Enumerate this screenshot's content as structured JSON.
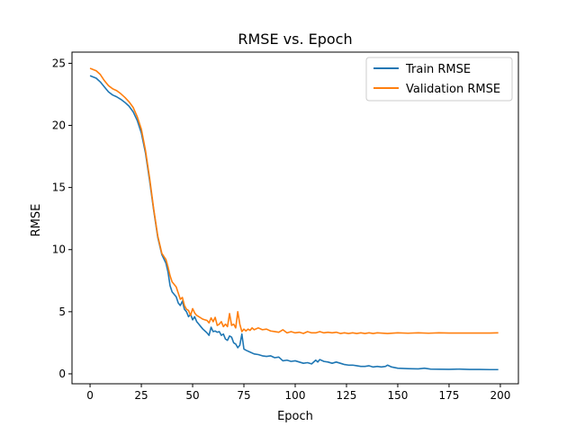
{
  "chart_data": {
    "type": "line",
    "title": "RMSE vs. Epoch",
    "xlabel": "Epoch",
    "ylabel": "RMSE",
    "xlim": [
      -8.8,
      208.8
    ],
    "ylim": [
      -0.8,
      25.9
    ],
    "xticks": [
      0,
      25,
      50,
      75,
      100,
      125,
      150,
      175,
      200
    ],
    "yticks": [
      0,
      5,
      10,
      15,
      20,
      25
    ],
    "grid": false,
    "legend_position": "top-right",
    "series": [
      {
        "name": "Train RMSE",
        "color": "#1f77b4",
        "points": [
          [
            0,
            24.0
          ],
          [
            3,
            23.8
          ],
          [
            5,
            23.5
          ],
          [
            7,
            23.1
          ],
          [
            9,
            22.7
          ],
          [
            11,
            22.45
          ],
          [
            13,
            22.3
          ],
          [
            15,
            22.1
          ],
          [
            17,
            21.85
          ],
          [
            19,
            21.55
          ],
          [
            21,
            21.1
          ],
          [
            23,
            20.4
          ],
          [
            25,
            19.4
          ],
          [
            27,
            17.8
          ],
          [
            29,
            15.6
          ],
          [
            31,
            13.2
          ],
          [
            33,
            11.0
          ],
          [
            35,
            9.6
          ],
          [
            37,
            8.9
          ],
          [
            38,
            8.2
          ],
          [
            39,
            7.1
          ],
          [
            40,
            6.6
          ],
          [
            42,
            6.2
          ],
          [
            43,
            5.7
          ],
          [
            44,
            5.5
          ],
          [
            45,
            5.85
          ],
          [
            46,
            5.2
          ],
          [
            47,
            5.0
          ],
          [
            48,
            4.6
          ],
          [
            49,
            4.8
          ],
          [
            50,
            4.35
          ],
          [
            51,
            4.6
          ],
          [
            52,
            4.2
          ],
          [
            53,
            4.0
          ],
          [
            54,
            3.8
          ],
          [
            55,
            3.6
          ],
          [
            56,
            3.45
          ],
          [
            57,
            3.3
          ],
          [
            58,
            3.1
          ],
          [
            59,
            3.75
          ],
          [
            60,
            3.4
          ],
          [
            61,
            3.45
          ],
          [
            62,
            3.35
          ],
          [
            63,
            3.4
          ],
          [
            64,
            3.1
          ],
          [
            65,
            3.2
          ],
          [
            66,
            2.8
          ],
          [
            67,
            2.7
          ],
          [
            68,
            3.05
          ],
          [
            69,
            2.95
          ],
          [
            70,
            2.5
          ],
          [
            71,
            2.4
          ],
          [
            72,
            2.1
          ],
          [
            73,
            2.3
          ],
          [
            74,
            3.2
          ],
          [
            75,
            2.0
          ],
          [
            76,
            1.9
          ],
          [
            78,
            1.75
          ],
          [
            80,
            1.6
          ],
          [
            82,
            1.55
          ],
          [
            84,
            1.45
          ],
          [
            86,
            1.4
          ],
          [
            88,
            1.45
          ],
          [
            90,
            1.3
          ],
          [
            92,
            1.35
          ],
          [
            94,
            1.05
          ],
          [
            96,
            1.1
          ],
          [
            98,
            1.0
          ],
          [
            100,
            1.05
          ],
          [
            102,
            0.95
          ],
          [
            104,
            0.85
          ],
          [
            106,
            0.9
          ],
          [
            108,
            0.8
          ],
          [
            110,
            1.1
          ],
          [
            111,
            0.95
          ],
          [
            112,
            1.15
          ],
          [
            114,
            1.0
          ],
          [
            116,
            0.95
          ],
          [
            118,
            0.85
          ],
          [
            120,
            0.95
          ],
          [
            122,
            0.85
          ],
          [
            124,
            0.75
          ],
          [
            126,
            0.7
          ],
          [
            128,
            0.7
          ],
          [
            130,
            0.65
          ],
          [
            132,
            0.6
          ],
          [
            134,
            0.6
          ],
          [
            136,
            0.65
          ],
          [
            138,
            0.55
          ],
          [
            140,
            0.6
          ],
          [
            142,
            0.55
          ],
          [
            144,
            0.6
          ],
          [
            145,
            0.7
          ],
          [
            147,
            0.55
          ],
          [
            150,
            0.45
          ],
          [
            155,
            0.42
          ],
          [
            160,
            0.4
          ],
          [
            163,
            0.45
          ],
          [
            166,
            0.38
          ],
          [
            170,
            0.37
          ],
          [
            175,
            0.36
          ],
          [
            180,
            0.38
          ],
          [
            185,
            0.35
          ],
          [
            190,
            0.35
          ],
          [
            195,
            0.34
          ],
          [
            199,
            0.34
          ]
        ]
      },
      {
        "name": "Validation RMSE",
        "color": "#ff7f0e",
        "points": [
          [
            0,
            24.6
          ],
          [
            3,
            24.4
          ],
          [
            5,
            24.1
          ],
          [
            7,
            23.6
          ],
          [
            9,
            23.2
          ],
          [
            11,
            22.95
          ],
          [
            13,
            22.8
          ],
          [
            15,
            22.55
          ],
          [
            17,
            22.25
          ],
          [
            19,
            21.9
          ],
          [
            21,
            21.45
          ],
          [
            23,
            20.7
          ],
          [
            25,
            19.7
          ],
          [
            27,
            18.0
          ],
          [
            29,
            15.8
          ],
          [
            31,
            13.3
          ],
          [
            33,
            11.1
          ],
          [
            35,
            9.7
          ],
          [
            37,
            9.2
          ],
          [
            38,
            8.6
          ],
          [
            39,
            7.9
          ],
          [
            40,
            7.4
          ],
          [
            42,
            7.0
          ],
          [
            43,
            6.5
          ],
          [
            44,
            6.0
          ],
          [
            45,
            6.15
          ],
          [
            46,
            5.5
          ],
          [
            47,
            5.2
          ],
          [
            48,
            5.1
          ],
          [
            49,
            4.7
          ],
          [
            50,
            5.25
          ],
          [
            51,
            4.9
          ],
          [
            52,
            4.7
          ],
          [
            53,
            4.6
          ],
          [
            54,
            4.5
          ],
          [
            55,
            4.4
          ],
          [
            56,
            4.35
          ],
          [
            57,
            4.3
          ],
          [
            58,
            4.1
          ],
          [
            59,
            4.5
          ],
          [
            60,
            4.2
          ],
          [
            61,
            4.55
          ],
          [
            62,
            3.9
          ],
          [
            63,
            4.0
          ],
          [
            64,
            4.2
          ],
          [
            65,
            3.8
          ],
          [
            66,
            4.0
          ],
          [
            67,
            3.8
          ],
          [
            68,
            4.85
          ],
          [
            69,
            3.9
          ],
          [
            70,
            4.0
          ],
          [
            71,
            3.7
          ],
          [
            72,
            5.0
          ],
          [
            73,
            4.0
          ],
          [
            74,
            3.4
          ],
          [
            75,
            3.6
          ],
          [
            76,
            3.45
          ],
          [
            77,
            3.6
          ],
          [
            78,
            3.5
          ],
          [
            79,
            3.7
          ],
          [
            80,
            3.55
          ],
          [
            82,
            3.7
          ],
          [
            84,
            3.55
          ],
          [
            86,
            3.6
          ],
          [
            88,
            3.45
          ],
          [
            90,
            3.4
          ],
          [
            92,
            3.35
          ],
          [
            94,
            3.55
          ],
          [
            96,
            3.3
          ],
          [
            98,
            3.4
          ],
          [
            100,
            3.3
          ],
          [
            102,
            3.35
          ],
          [
            104,
            3.25
          ],
          [
            106,
            3.4
          ],
          [
            108,
            3.3
          ],
          [
            110,
            3.3
          ],
          [
            112,
            3.4
          ],
          [
            114,
            3.3
          ],
          [
            116,
            3.35
          ],
          [
            118,
            3.3
          ],
          [
            120,
            3.35
          ],
          [
            122,
            3.25
          ],
          [
            124,
            3.3
          ],
          [
            126,
            3.25
          ],
          [
            128,
            3.3
          ],
          [
            130,
            3.25
          ],
          [
            132,
            3.3
          ],
          [
            134,
            3.25
          ],
          [
            136,
            3.3
          ],
          [
            138,
            3.25
          ],
          [
            140,
            3.3
          ],
          [
            145,
            3.25
          ],
          [
            150,
            3.3
          ],
          [
            155,
            3.27
          ],
          [
            160,
            3.3
          ],
          [
            165,
            3.27
          ],
          [
            170,
            3.3
          ],
          [
            175,
            3.28
          ],
          [
            180,
            3.28
          ],
          [
            185,
            3.28
          ],
          [
            190,
            3.28
          ],
          [
            195,
            3.28
          ],
          [
            199,
            3.3
          ]
        ]
      }
    ]
  }
}
